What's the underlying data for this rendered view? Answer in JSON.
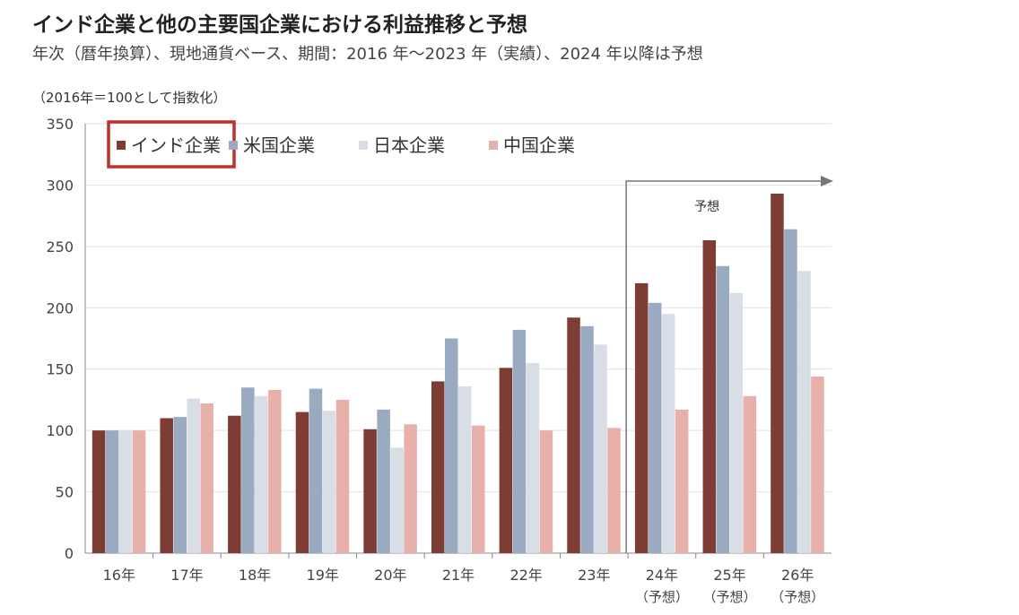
{
  "header": {
    "title": "インド企業と他の主要国企業における利益推移と予想",
    "subtitle": "年次（暦年換算）、現地通貨ベース、期間：2016 年～2023 年（実績）、2024 年以降は予想"
  },
  "chart_data": {
    "type": "bar",
    "unit_note": "（2016年＝100として指数化）",
    "categories": [
      "16年",
      "17年",
      "18年",
      "19年",
      "20年",
      "21年",
      "22年",
      "23年",
      "24年",
      "25年",
      "26年"
    ],
    "category_sublabels": [
      "",
      "",
      "",
      "",
      "",
      "",
      "",
      "",
      "（予想）",
      "（予想）",
      "（予想）"
    ],
    "series": [
      {
        "name": "インド企業",
        "color": "#7d3c34",
        "values": [
          100,
          110,
          112,
          115,
          101,
          140,
          151,
          192,
          220,
          255,
          293
        ]
      },
      {
        "name": "米国企業",
        "color": "#9aaac0",
        "values": [
          100,
          111,
          135,
          134,
          117,
          175,
          182,
          185,
          204,
          234,
          264
        ]
      },
      {
        "name": "日本企業",
        "color": "#d9dde6",
        "values": [
          100,
          126,
          128,
          116,
          86,
          136,
          155,
          170,
          195,
          212,
          230
        ]
      },
      {
        "name": "中国企業",
        "color": "#e8b0aa",
        "values": [
          100,
          122,
          133,
          125,
          105,
          104,
          100,
          102,
          117,
          128,
          144
        ]
      }
    ],
    "ylim": [
      0,
      350
    ],
    "yticks": [
      "0",
      "50",
      "100",
      "150",
      "200",
      "250",
      "300",
      "350"
    ],
    "grid": true,
    "legend_position": "top-left",
    "legend_highlight": "インド企業",
    "highlight_color": "#c0302a",
    "forecast_label": "予想",
    "forecast_start_category": "24年"
  }
}
